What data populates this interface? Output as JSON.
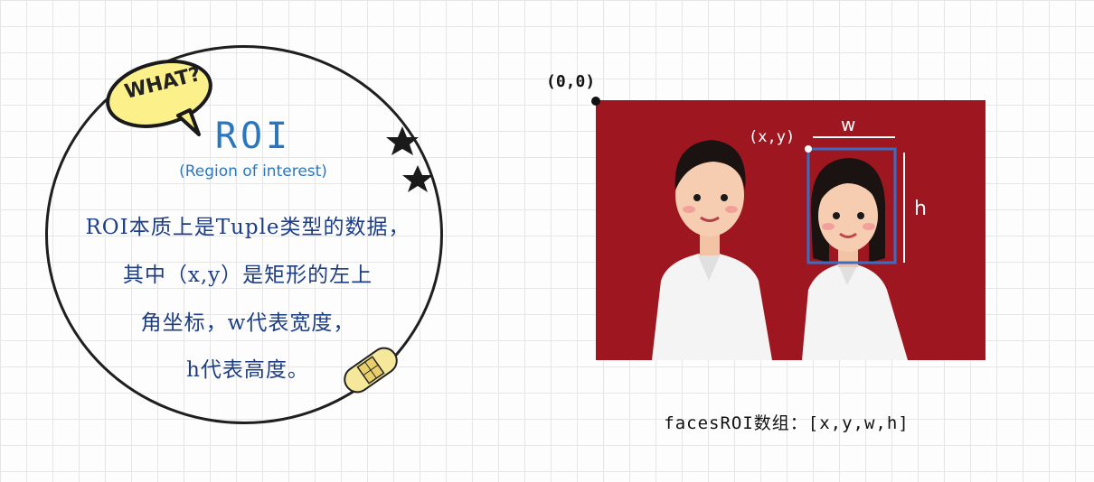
{
  "left_panel": {
    "bubble_text": "WHAT?",
    "title": "ROI",
    "subtitle": "(Region of interest)",
    "lines": [
      "ROI本质上是Tuple类型的数据，",
      "其中（x,y）是矩形的左上",
      "角坐标，w代表宽度，",
      "h代表高度。"
    ]
  },
  "diagram": {
    "origin_label": "(0,0)",
    "xy_label": "(x,y)",
    "w_label": "w",
    "h_label": "h",
    "background_color": "#9e1620",
    "box_color": "#3a6ec4"
  },
  "caption": "facesROI数组：[x,y,w,h]",
  "colors": {
    "title": "#2a77c0",
    "body_text": "#1d3e85",
    "bubble_fill": "#fbf08a"
  }
}
